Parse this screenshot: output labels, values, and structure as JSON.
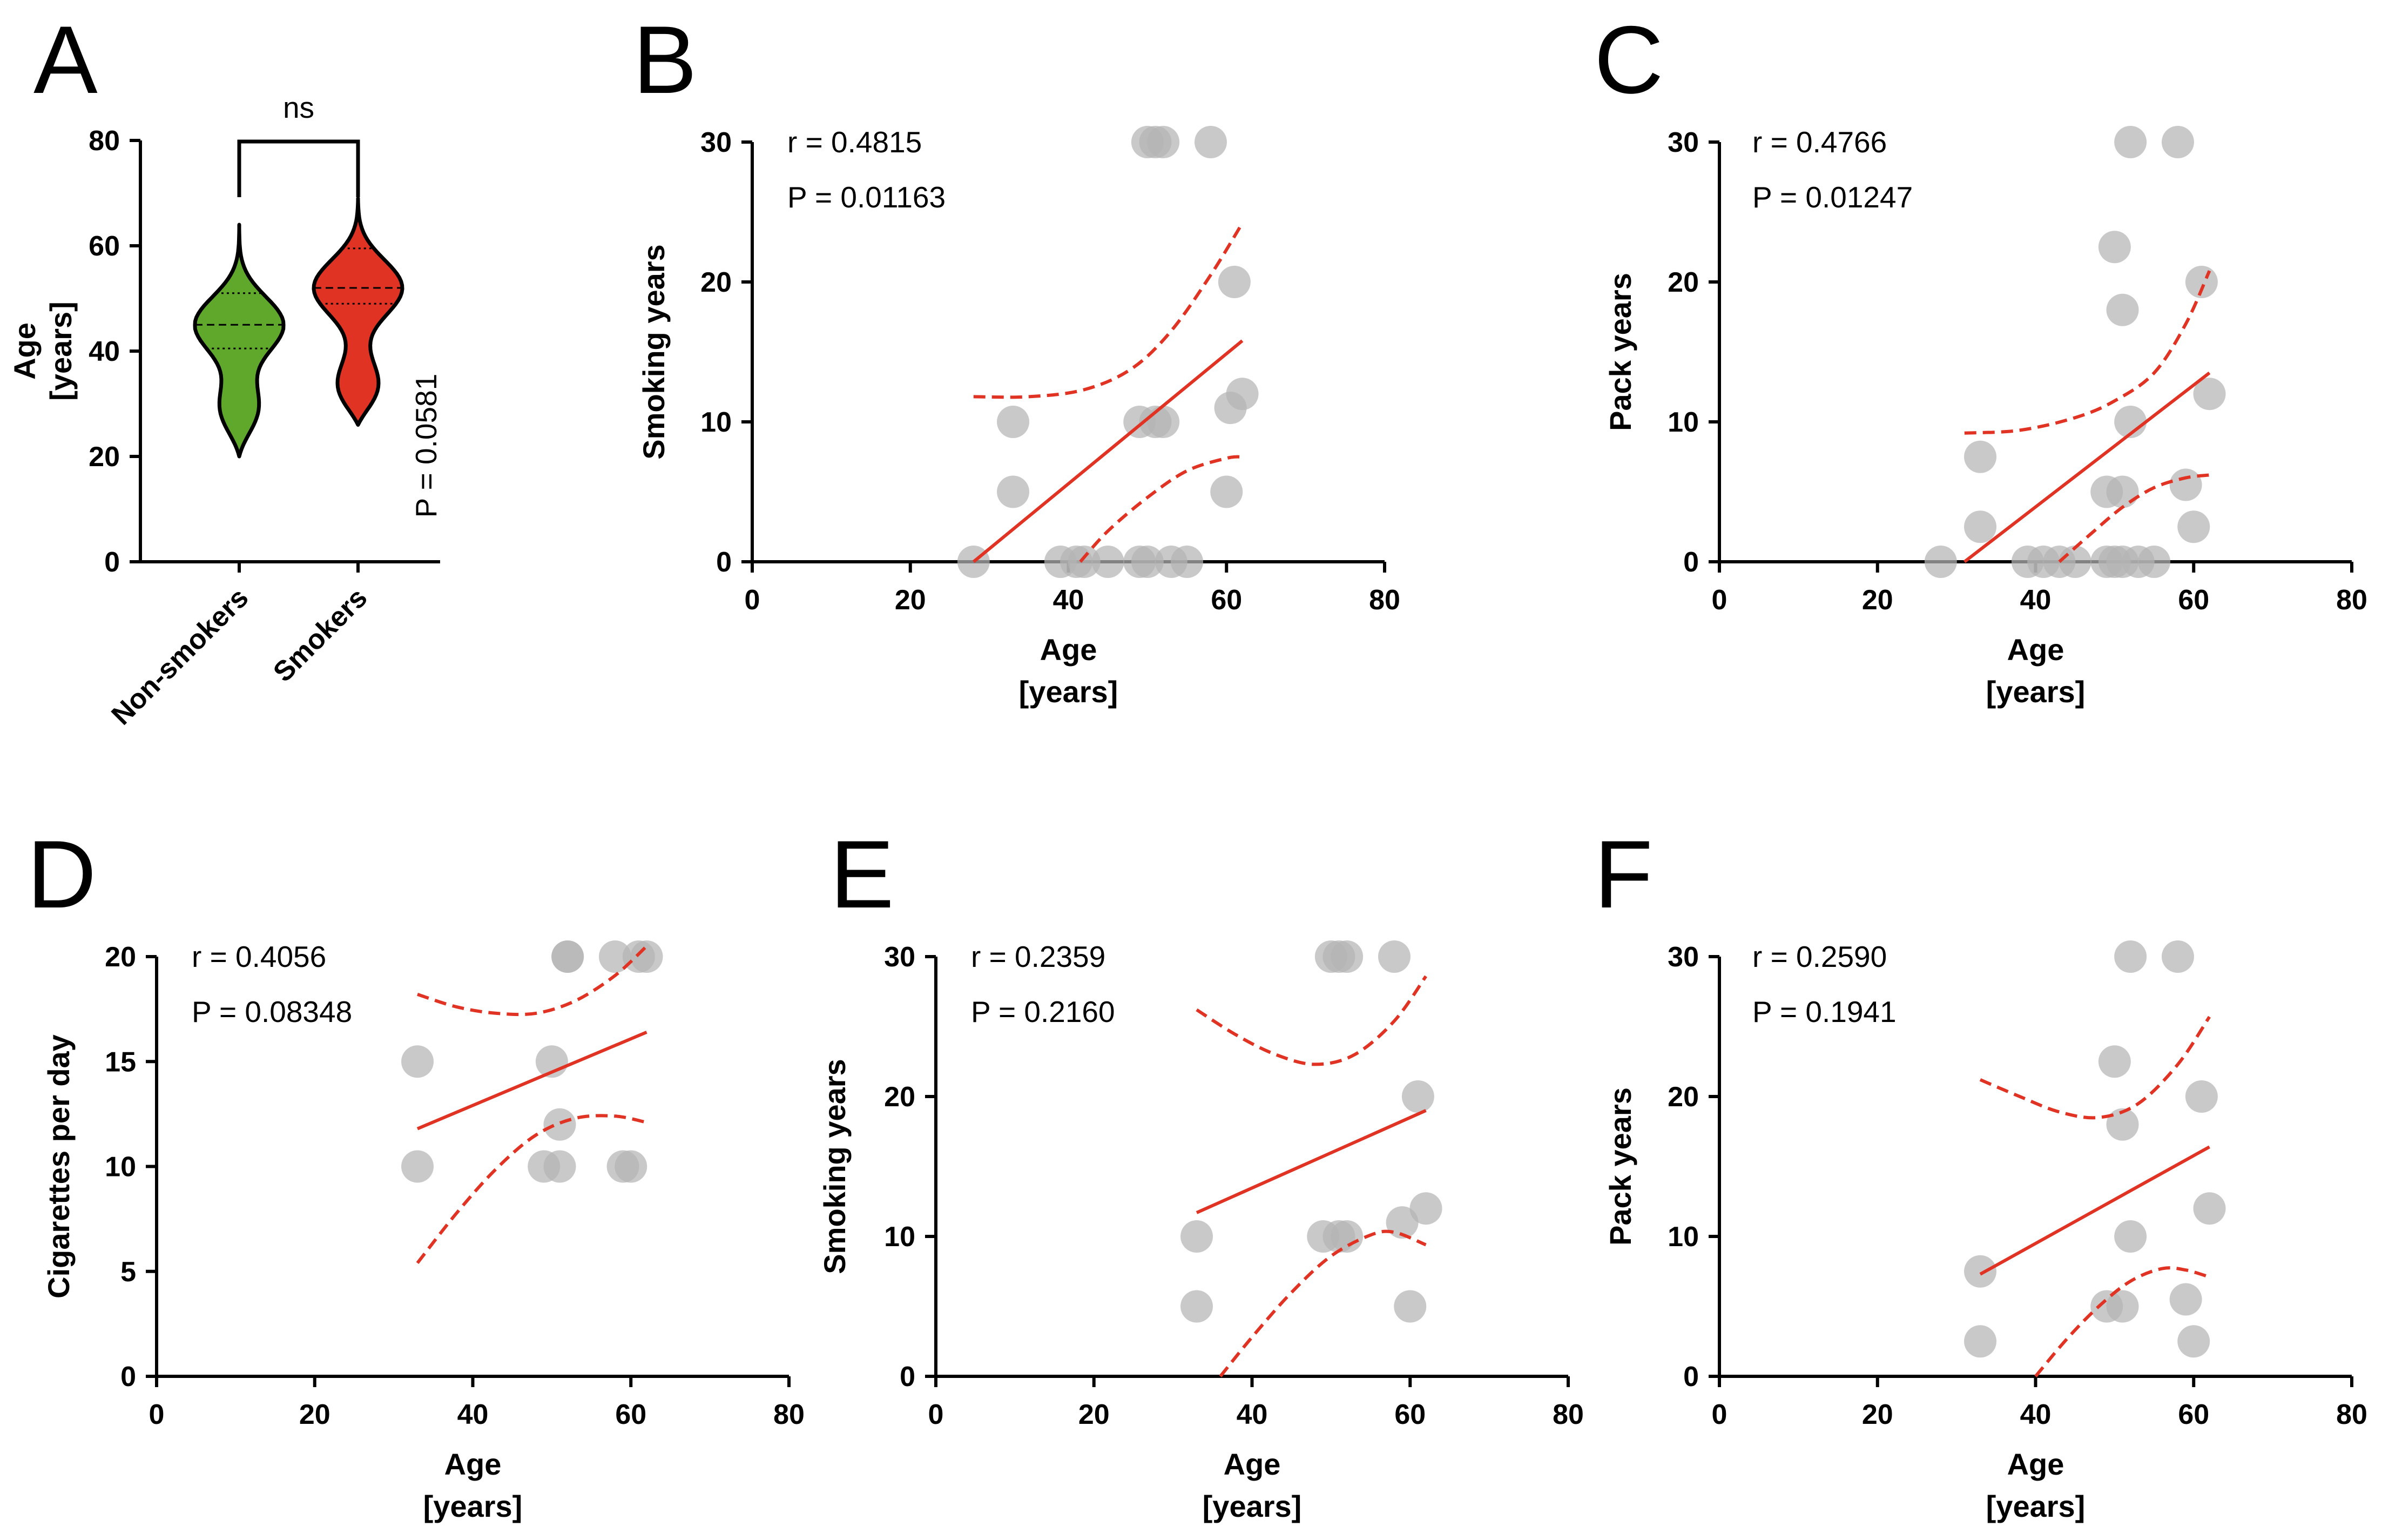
{
  "colors": {
    "point": "#b4b4b4",
    "fit": "#e03324",
    "nonsmokers": "#5fa82c",
    "smokers": "#e03324",
    "axis": "#000000"
  },
  "panel_a": {
    "letter": "A",
    "y_title": [
      "Age",
      "[years]"
    ],
    "significance": "ns",
    "p_label": "P = 0.0581"
  },
  "chart_data": [
    {
      "id": "A",
      "type": "violin",
      "categories": [
        "Non-smokers",
        "Smokers"
      ],
      "ylabel": "Age [years]",
      "ylim": [
        0,
        80
      ],
      "yticks": [
        0,
        20,
        40,
        60,
        80
      ],
      "groups": [
        {
          "name": "Non-smokers",
          "color": "#5fa82c",
          "min": 20,
          "max": 64,
          "median": 45,
          "q1": 40.5,
          "q3": 51,
          "bulges": [
            [
              45,
              1.0
            ],
            [
              29,
              0.45
            ]
          ]
        },
        {
          "name": "Smokers",
          "color": "#e03324",
          "min": 26,
          "max": 69,
          "median": 52,
          "q1": 49,
          "q3": 59.5,
          "bulges": [
            [
              52,
              1.0
            ],
            [
              33,
              0.5
            ]
          ]
        }
      ],
      "annotation": "ns",
      "p_value": "P = 0.0581"
    },
    {
      "id": "B",
      "type": "scatter",
      "title": "",
      "xlabel": "Age",
      "xlabel2": "[years]",
      "ylabel": "Smoking years",
      "xlim": [
        0,
        80
      ],
      "ylim": [
        0,
        30
      ],
      "xticks": [
        0,
        20,
        40,
        60,
        80
      ],
      "yticks": [
        0,
        10,
        20,
        30
      ],
      "r_text": "r = 0.4815",
      "p_text": "P = 0.01163",
      "points": [
        [
          28,
          0
        ],
        [
          39,
          0
        ],
        [
          41,
          0
        ],
        [
          42,
          0
        ],
        [
          45,
          0
        ],
        [
          49,
          0
        ],
        [
          50,
          0
        ],
        [
          53,
          0
        ],
        [
          55,
          0
        ],
        [
          33,
          5
        ],
        [
          33,
          10
        ],
        [
          49,
          10
        ],
        [
          51,
          10
        ],
        [
          52,
          10
        ],
        [
          60,
          5
        ],
        [
          60.5,
          11
        ],
        [
          61,
          20
        ],
        [
          62,
          12
        ],
        [
          50,
          30
        ],
        [
          51,
          30
        ],
        [
          52,
          30
        ],
        [
          58,
          30
        ]
      ],
      "fit": [
        [
          28,
          0
        ],
        [
          62,
          15.8
        ]
      ],
      "ci_upper": [
        [
          28,
          11.8
        ],
        [
          35,
          11.8
        ],
        [
          42,
          12.3
        ],
        [
          48,
          13.8
        ],
        [
          53,
          16.5
        ],
        [
          58,
          20.5
        ],
        [
          62,
          24.2
        ]
      ],
      "ci_lower": [
        [
          41.5,
          0
        ],
        [
          45,
          2.2
        ],
        [
          50,
          4.6
        ],
        [
          55,
          6.5
        ],
        [
          60,
          7.4
        ],
        [
          62,
          7.5
        ]
      ]
    },
    {
      "id": "C",
      "type": "scatter",
      "title": "",
      "xlabel": "Age",
      "xlabel2": "[years]",
      "ylabel": "Pack years",
      "xlim": [
        0,
        80
      ],
      "ylim": [
        0,
        30
      ],
      "xticks": [
        0,
        20,
        40,
        60,
        80
      ],
      "yticks": [
        0,
        10,
        20,
        30
      ],
      "r_text": "r = 0.4766",
      "p_text": "P = 0.01247",
      "points": [
        [
          28,
          0
        ],
        [
          33,
          2.5
        ],
        [
          33,
          7.5
        ],
        [
          39,
          0
        ],
        [
          41,
          0
        ],
        [
          43,
          0
        ],
        [
          45,
          0
        ],
        [
          49,
          0
        ],
        [
          50,
          0
        ],
        [
          51,
          0
        ],
        [
          53,
          0
        ],
        [
          55,
          0
        ],
        [
          49,
          5
        ],
        [
          51,
          5
        ],
        [
          52,
          10
        ],
        [
          51,
          18
        ],
        [
          50,
          22.5
        ],
        [
          52,
          30
        ],
        [
          58,
          30
        ],
        [
          59,
          5.5
        ],
        [
          60,
          2.5
        ],
        [
          61,
          20
        ],
        [
          62,
          12
        ]
      ],
      "fit": [
        [
          31,
          0
        ],
        [
          62,
          13.5
        ]
      ],
      "ci_upper": [
        [
          31,
          9.2
        ],
        [
          38,
          9.4
        ],
        [
          45,
          10.3
        ],
        [
          50,
          11.5
        ],
        [
          55,
          13.5
        ],
        [
          59,
          17
        ],
        [
          62,
          20.8
        ]
      ],
      "ci_lower": [
        [
          43,
          0
        ],
        [
          47,
          2
        ],
        [
          51,
          3.9
        ],
        [
          55,
          5.3
        ],
        [
          59,
          6
        ],
        [
          62,
          6.2
        ]
      ]
    },
    {
      "id": "D",
      "type": "scatter",
      "title": "",
      "xlabel": "Age",
      "xlabel2": "[years]",
      "ylabel": "Cigarettes per day",
      "xlim": [
        0,
        80
      ],
      "ylim": [
        0,
        20
      ],
      "xticks": [
        0,
        20,
        40,
        60,
        80
      ],
      "yticks": [
        0,
        5,
        10,
        15,
        20
      ],
      "r_text": "r = 0.4056",
      "p_text": "P = 0.08348",
      "points": [
        [
          33,
          10
        ],
        [
          33,
          15
        ],
        [
          49,
          10
        ],
        [
          50,
          15
        ],
        [
          51,
          12
        ],
        [
          51,
          10
        ],
        [
          52,
          20
        ],
        [
          52,
          20
        ],
        [
          58,
          20
        ],
        [
          59,
          10
        ],
        [
          60,
          10
        ],
        [
          61,
          20
        ],
        [
          62,
          20
        ]
      ],
      "fit": [
        [
          33,
          11.8
        ],
        [
          62,
          16.4
        ]
      ],
      "ci_upper": [
        [
          33,
          18.2
        ],
        [
          38,
          17.6
        ],
        [
          43,
          17.3
        ],
        [
          48,
          17.3
        ],
        [
          53,
          17.9
        ],
        [
          58,
          19.1
        ],
        [
          62,
          20.5
        ]
      ],
      "ci_lower": [
        [
          33,
          5.4
        ],
        [
          38,
          7.8
        ],
        [
          43,
          9.9
        ],
        [
          48,
          11.5
        ],
        [
          53,
          12.3
        ],
        [
          58,
          12.4
        ],
        [
          62,
          12.1
        ]
      ]
    },
    {
      "id": "E",
      "type": "scatter",
      "title": "",
      "xlabel": "Age",
      "xlabel2": "[years]",
      "ylabel": "Smoking years",
      "xlim": [
        0,
        80
      ],
      "ylim": [
        0,
        30
      ],
      "xticks": [
        0,
        20,
        40,
        60,
        80
      ],
      "yticks": [
        0,
        10,
        20,
        30
      ],
      "r_text": "r = 0.2359",
      "p_text": "P = 0.2160",
      "points": [
        [
          33,
          5
        ],
        [
          33,
          10
        ],
        [
          49,
          10
        ],
        [
          51,
          10
        ],
        [
          52,
          10
        ],
        [
          50,
          30
        ],
        [
          51,
          30
        ],
        [
          52,
          30
        ],
        [
          58,
          30
        ],
        [
          59,
          11
        ],
        [
          60,
          5
        ],
        [
          61,
          20
        ],
        [
          62,
          12
        ]
      ],
      "fit": [
        [
          33,
          11.7
        ],
        [
          62,
          19
        ]
      ],
      "ci_upper": [
        [
          33,
          26.2
        ],
        [
          38,
          24.4
        ],
        [
          43,
          23
        ],
        [
          48,
          22.3
        ],
        [
          53,
          23
        ],
        [
          58,
          25.4
        ],
        [
          62,
          28.6
        ]
      ],
      "ci_lower": [
        [
          36,
          0
        ],
        [
          40,
          2.8
        ],
        [
          45,
          6
        ],
        [
          50,
          8.6
        ],
        [
          55,
          10.1
        ],
        [
          58,
          10.3
        ],
        [
          62,
          9.4
        ]
      ]
    },
    {
      "id": "F",
      "type": "scatter",
      "title": "",
      "xlabel": "Age",
      "xlabel2": "[years]",
      "ylabel": "Pack years",
      "xlim": [
        0,
        80
      ],
      "ylim": [
        0,
        30
      ],
      "xticks": [
        0,
        20,
        40,
        60,
        80
      ],
      "yticks": [
        0,
        10,
        20,
        30
      ],
      "r_text": "r = 0.2590",
      "p_text": "P = 0.1941",
      "points": [
        [
          33,
          2.5
        ],
        [
          33,
          7.5
        ],
        [
          49,
          5
        ],
        [
          51,
          5
        ],
        [
          52,
          10
        ],
        [
          51,
          18
        ],
        [
          50,
          22.5
        ],
        [
          52,
          30
        ],
        [
          58,
          30
        ],
        [
          59,
          5.5
        ],
        [
          60,
          2.5
        ],
        [
          61,
          20
        ],
        [
          62,
          12
        ]
      ],
      "fit": [
        [
          33,
          7.3
        ],
        [
          62,
          16.4
        ]
      ],
      "ci_upper": [
        [
          33,
          21.2
        ],
        [
          38,
          20
        ],
        [
          43,
          18.9
        ],
        [
          48,
          18.5
        ],
        [
          53,
          19.5
        ],
        [
          58,
          22.3
        ],
        [
          62,
          25.7
        ]
      ],
      "ci_lower": [
        [
          40,
          0
        ],
        [
          44,
          2.7
        ],
        [
          48,
          5
        ],
        [
          52,
          6.8
        ],
        [
          56,
          7.7
        ],
        [
          59,
          7.6
        ],
        [
          62,
          7.1
        ]
      ]
    }
  ]
}
